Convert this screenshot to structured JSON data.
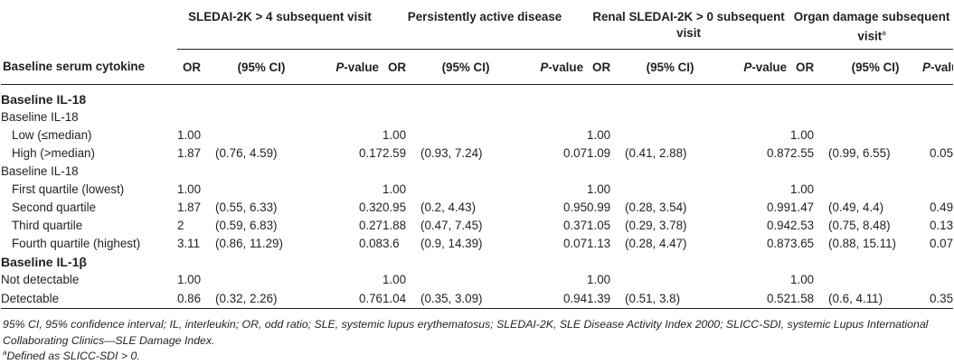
{
  "table": {
    "groups": [
      {
        "label": "SLEDAI-2K > 4 subsequent visit",
        "sup": ""
      },
      {
        "label": "Persistently active disease",
        "sup": ""
      },
      {
        "label": "Renal SLEDAI-2K > 0 subsequent visit",
        "sup": ""
      },
      {
        "label": "Organ damage subsequent visit",
        "sup": "a"
      }
    ],
    "first_header": "Baseline serum cytokine",
    "col_or": "OR",
    "col_ci": "(95% CI)",
    "col_p_italic": "P",
    "col_p_rest": "-value",
    "rows": [
      {
        "type": "section",
        "label": "Baseline IL-18"
      },
      {
        "type": "sub",
        "label": "Baseline IL-18"
      },
      {
        "type": "data",
        "label": "Low (≤median)",
        "vals": [
          "1.00",
          "",
          "",
          "1.00",
          "",
          "",
          "1.00",
          "",
          "",
          "1.00",
          "",
          ""
        ]
      },
      {
        "type": "data",
        "label": "High (>median)",
        "vals": [
          "1.87",
          "(0.76, 4.59)",
          "0.17",
          "2.59",
          "(0.93, 7.24)",
          "0.07",
          "1.09",
          "(0.41, 2.88)",
          "0.87",
          "2.55",
          "(0.99, 6.55)",
          "0.05"
        ]
      },
      {
        "type": "sub",
        "label": "Baseline IL-18"
      },
      {
        "type": "data",
        "label": "First quartile (lowest)",
        "vals": [
          "1.00",
          "",
          "",
          "1.00",
          "",
          "",
          "1.00",
          "",
          "",
          "1.00",
          "",
          ""
        ]
      },
      {
        "type": "data",
        "label": "Second quartile",
        "vals": [
          "1.87",
          "(0.55, 6.33)",
          "0.32",
          "0.95",
          "(0.2, 4.43)",
          "0.95",
          "0.99",
          "(0.28, 3.54)",
          "0.99",
          "1.47",
          "(0.49, 4.4)",
          "0.49"
        ]
      },
      {
        "type": "data",
        "label": "Third quartile",
        "vals": [
          "2",
          "(0.59, 6.83)",
          "0.27",
          "1.88",
          "(0.47, 7.45)",
          "0.37",
          "1.05",
          "(0.29, 3.78)",
          "0.94",
          "2.53",
          "(0.75, 8.48)",
          "0.13"
        ]
      },
      {
        "type": "data",
        "label": "Fourth quartile (highest)",
        "vals": [
          "3.11",
          "(0.86, 11.29)",
          "0.08",
          "3.6",
          "(0.9, 14.39)",
          "0.07",
          "1.13",
          "(0.28, 4.47)",
          "0.87",
          "3.65",
          "(0.88, 15.11)",
          "0.07"
        ]
      },
      {
        "type": "section",
        "label": "Baseline IL-1β"
      },
      {
        "type": "data0",
        "label": "Not detectable",
        "vals": [
          "1.00",
          "",
          "",
          "1.00",
          "",
          "",
          "1.00",
          "",
          "",
          "1.00",
          "",
          ""
        ]
      },
      {
        "type": "data0",
        "label": "Detectable",
        "vals": [
          "0.86",
          "(0.32, 2.26)",
          "0.76",
          "1.04",
          "(0.35, 3.09)",
          "0.94",
          "1.39",
          "(0.51, 3.8)",
          "0.52",
          "1.58",
          "(0.6, 4.11)",
          "0.35"
        ]
      }
    ]
  },
  "footnotes": {
    "abbrev": "95% CI, 95% confidence interval; IL, interleukin; OR, odd ratio; SLE, systemic lupus erythematosus; SLEDAI-2K, SLE Disease Activity Index 2000; SLICC-SDI, systemic Lupus International Collaborating Clinics—SLE Damage Index.",
    "a_marker": "a",
    "a_text": "Defined as SLICC-SDI > 0."
  }
}
